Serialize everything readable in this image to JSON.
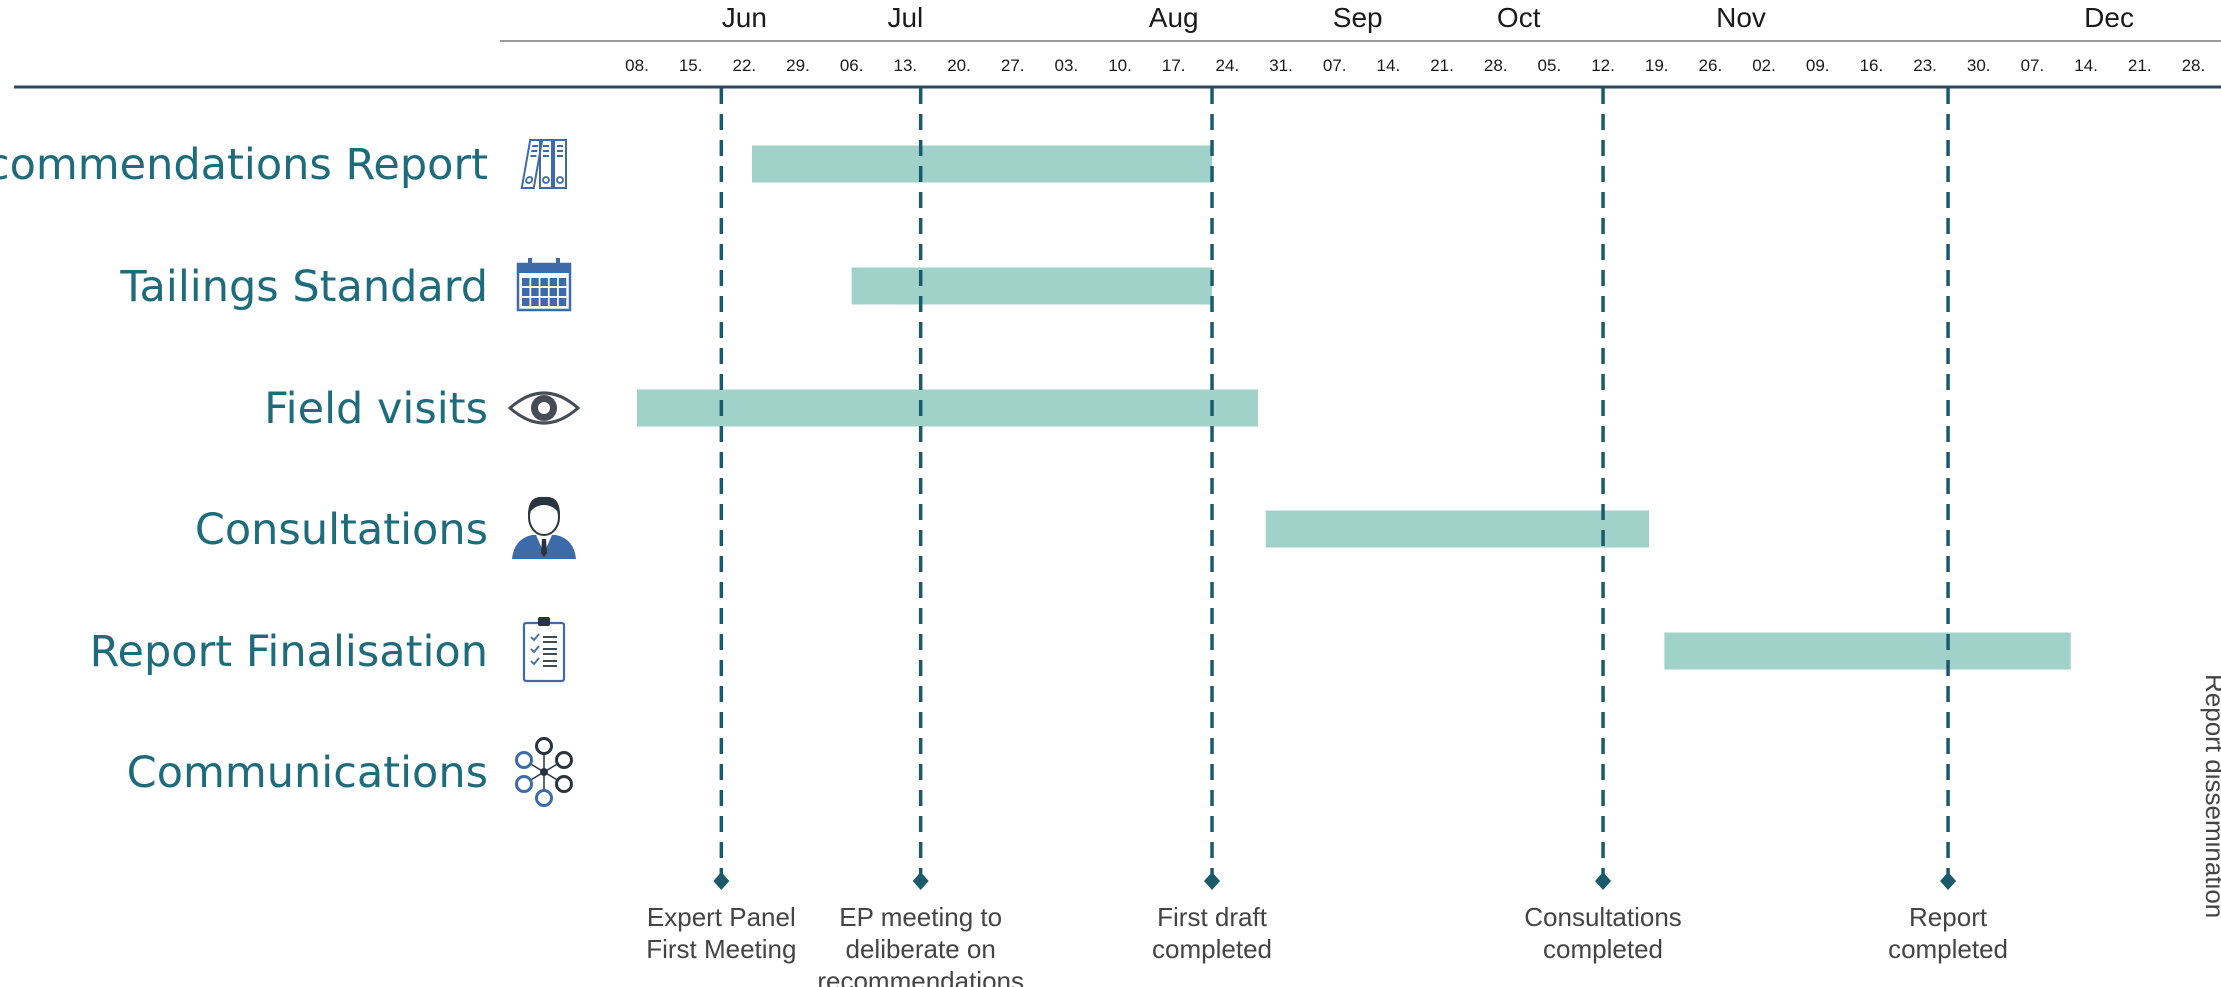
{
  "colors": {
    "bar": "#a0d2ca",
    "accent": "#1e6c7b",
    "axis_line": "#2b4a5c",
    "milestone_line": "#1b5a6b",
    "icon": "#3d6aa8",
    "text": "#1a1a1a",
    "milestone_text": "#444444"
  },
  "chart_data": {
    "type": "gantt",
    "title": "",
    "x_range": [
      "2019-06-08",
      "2020-01-03"
    ],
    "months": [
      {
        "label": "Jun",
        "center": "2019-06-22"
      },
      {
        "label": "Jul",
        "center": "2019-07-13"
      },
      {
        "label": "Aug",
        "center": "2019-08-17"
      },
      {
        "label": "Sep",
        "center": "2019-09-10"
      },
      {
        "label": "Oct",
        "center": "2019-10-01"
      },
      {
        "label": "Nov",
        "center": "2019-10-30"
      },
      {
        "label": "Dec",
        "center": "2019-12-17"
      }
    ],
    "week_ticks": [
      {
        "label": "08.",
        "date": "2019-06-08"
      },
      {
        "label": "15.",
        "date": "2019-06-15"
      },
      {
        "label": "22.",
        "date": "2019-06-22"
      },
      {
        "label": "29.",
        "date": "2019-06-29"
      },
      {
        "label": "06.",
        "date": "2019-07-06"
      },
      {
        "label": "13.",
        "date": "2019-07-13"
      },
      {
        "label": "20.",
        "date": "2019-07-20"
      },
      {
        "label": "27.",
        "date": "2019-07-27"
      },
      {
        "label": "03.",
        "date": "2019-08-03"
      },
      {
        "label": "10.",
        "date": "2019-08-10"
      },
      {
        "label": "17.",
        "date": "2019-08-17"
      },
      {
        "label": "24.",
        "date": "2019-08-24"
      },
      {
        "label": "31.",
        "date": "2019-08-31"
      },
      {
        "label": "07.",
        "date": "2019-09-07"
      },
      {
        "label": "14.",
        "date": "2019-09-14"
      },
      {
        "label": "21.",
        "date": "2019-09-21"
      },
      {
        "label": "28.",
        "date": "2019-09-28"
      },
      {
        "label": "05.",
        "date": "2019-10-05"
      },
      {
        "label": "12.",
        "date": "2019-10-12"
      },
      {
        "label": "19.",
        "date": "2019-10-19"
      },
      {
        "label": "26.",
        "date": "2019-10-26"
      },
      {
        "label": "02.",
        "date": "2019-11-02"
      },
      {
        "label": "09.",
        "date": "2019-11-09"
      },
      {
        "label": "16.",
        "date": "2019-11-16"
      },
      {
        "label": "23.",
        "date": "2019-11-23"
      },
      {
        "label": "30.",
        "date": "2019-11-30"
      },
      {
        "label": "07.",
        "date": "2019-12-07"
      },
      {
        "label": "14.",
        "date": "2019-12-14"
      },
      {
        "label": "21.",
        "date": "2019-12-21"
      },
      {
        "label": "28.",
        "date": "2019-12-28"
      }
    ],
    "tasks": [
      {
        "label": "Recommendations Report",
        "icon": "binders-icon",
        "start": "2019-06-23",
        "end": "2019-08-22"
      },
      {
        "label": "Tailings Standard",
        "icon": "calendar-icon",
        "start": "2019-07-06",
        "end": "2019-08-22"
      },
      {
        "label": "Field visits",
        "icon": "eye-icon",
        "start": "2019-06-08",
        "end": "2019-08-28"
      },
      {
        "label": "Consultations",
        "icon": "person-icon",
        "start": "2019-08-29",
        "end": "2019-10-18"
      },
      {
        "label": "Report Finalisation",
        "icon": "clipboard-checklist-icon",
        "start": "2019-10-20",
        "end": "2019-12-12"
      },
      {
        "label": "Communications",
        "icon": "network-icon",
        "start": null,
        "end": null
      }
    ],
    "milestones": [
      {
        "label_lines": [
          "Expert Panel",
          "First Meeting"
        ],
        "date": "2019-06-19"
      },
      {
        "label_lines": [
          "EP meeting to",
          "deliberate on",
          "recommendations"
        ],
        "date": "2019-07-15"
      },
      {
        "label_lines": [
          "First draft",
          "completed"
        ],
        "date": "2019-08-22"
      },
      {
        "label_lines": [
          "Consultations",
          "completed"
        ],
        "date": "2019-10-12"
      },
      {
        "label_lines": [
          "Report",
          "completed"
        ],
        "date": "2019-11-26"
      }
    ],
    "side_label": "Report dissemination"
  }
}
